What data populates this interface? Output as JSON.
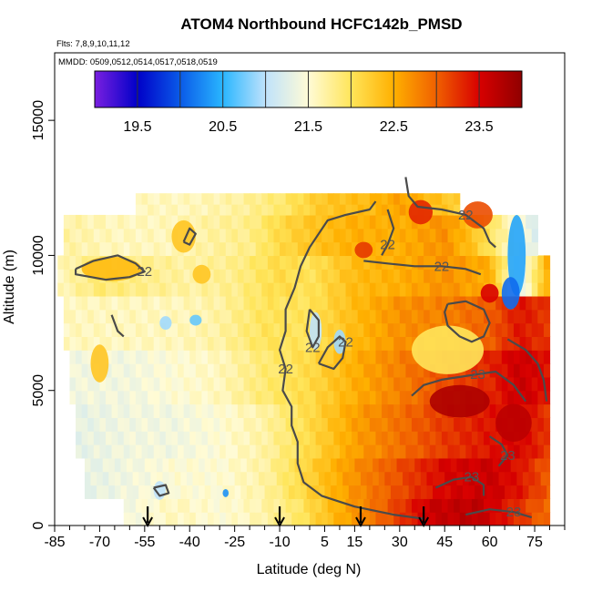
{
  "chart_data": {
    "type": "heatmap",
    "title": "ATOM4 Northbound HCFC142b_PMSD",
    "subtitle_flights": "Flts: 7,8,9,10,11,12",
    "subtitle_dates": "MMDD: 0509,0512,0514,0517,0518,0519",
    "xlabel": "Latitude (deg N)",
    "ylabel": "Altitude (m)",
    "xlim": [
      -85,
      85
    ],
    "ylim": [
      0,
      17500
    ],
    "x_ticks": [
      -85,
      -70,
      -55,
      -40,
      -25,
      -10,
      5,
      15,
      30,
      45,
      60,
      75
    ],
    "x_tick_labels": [
      "-85",
      "-70",
      "-55",
      "-40",
      "-25",
      "-10",
      "5",
      "15",
      "30",
      "45",
      "60",
      "75"
    ],
    "y_ticks": [
      0,
      5000,
      10000,
      15000
    ],
    "y_tick_labels": [
      "0",
      "5000",
      "10000",
      "15000"
    ],
    "colorbar": {
      "min": 19.0,
      "max": 24.0,
      "ticks": [
        19.5,
        20.5,
        21.5,
        22.5,
        23.5
      ],
      "tick_labels": [
        "19.5",
        "20.5",
        "21.5",
        "22.5",
        "23.5"
      ],
      "colors": [
        "#7a1fe0",
        "#0000c8",
        "#0a5ae8",
        "#29b6ff",
        "#bfe2fb",
        "#fffbd6",
        "#ffe55a",
        "#ffb000",
        "#f06000",
        "#d80000",
        "#900000"
      ]
    },
    "contour_labels": [
      "22",
      "22",
      "22",
      "22",
      "22",
      "22",
      "22",
      "23",
      "23",
      "23",
      "23"
    ],
    "profile_arrows_lat": [
      -54,
      -10,
      17,
      38
    ],
    "bands": [
      {
        "alt_min": 0,
        "alt_max": 1000,
        "lat_min": -62,
        "lat_max": 80,
        "values": [
          [
            -62,
            21.4
          ],
          [
            -45,
            21.6
          ],
          [
            -30,
            21.5
          ],
          [
            -20,
            21.6
          ],
          [
            -5,
            21.9
          ],
          [
            10,
            22.5
          ],
          [
            25,
            23.0
          ],
          [
            40,
            23.6
          ],
          [
            55,
            23.7
          ],
          [
            65,
            23.4
          ],
          [
            80,
            22.9
          ]
        ]
      },
      {
        "alt_min": 1000,
        "alt_max": 2500,
        "lat_min": -75,
        "lat_max": 80,
        "values": [
          [
            -75,
            21.3
          ],
          [
            -60,
            21.4
          ],
          [
            -45,
            21.5
          ],
          [
            -30,
            21.5
          ],
          [
            -15,
            21.7
          ],
          [
            0,
            22.2
          ],
          [
            15,
            22.7
          ],
          [
            30,
            23.1
          ],
          [
            45,
            23.5
          ],
          [
            60,
            23.6
          ],
          [
            70,
            23.4
          ],
          [
            80,
            23.0
          ]
        ]
      },
      {
        "alt_min": 2500,
        "alt_max": 4500,
        "lat_min": -78,
        "lat_max": 80,
        "values": [
          [
            -78,
            21.3
          ],
          [
            -60,
            21.4
          ],
          [
            -45,
            21.4
          ],
          [
            -30,
            21.5
          ],
          [
            -15,
            21.7
          ],
          [
            0,
            22.1
          ],
          [
            15,
            22.6
          ],
          [
            30,
            22.9
          ],
          [
            45,
            23.2
          ],
          [
            60,
            23.4
          ],
          [
            70,
            23.5
          ],
          [
            80,
            23.2
          ]
        ]
      },
      {
        "alt_min": 4500,
        "alt_max": 6500,
        "lat_min": -80,
        "lat_max": 80,
        "values": [
          [
            -80,
            21.4
          ],
          [
            -60,
            21.4
          ],
          [
            -45,
            21.5
          ],
          [
            -30,
            21.6
          ],
          [
            -15,
            21.9
          ],
          [
            0,
            22.1
          ],
          [
            15,
            22.5
          ],
          [
            30,
            22.8
          ],
          [
            45,
            23.1
          ],
          [
            60,
            23.3
          ],
          [
            70,
            23.6
          ],
          [
            80,
            23.4
          ]
        ]
      },
      {
        "alt_min": 6500,
        "alt_max": 8500,
        "lat_min": -82,
        "lat_max": 80,
        "values": [
          [
            -82,
            21.6
          ],
          [
            -60,
            21.6
          ],
          [
            -45,
            21.6
          ],
          [
            -30,
            21.7
          ],
          [
            -15,
            22.0
          ],
          [
            0,
            22.0
          ],
          [
            15,
            22.4
          ],
          [
            30,
            22.7
          ],
          [
            45,
            22.8
          ],
          [
            60,
            23.0
          ],
          [
            70,
            23.4
          ],
          [
            80,
            23.2
          ]
        ]
      },
      {
        "alt_min": 8500,
        "alt_max": 10000,
        "lat_min": -84,
        "lat_max": 80,
        "values": [
          [
            -84,
            21.6
          ],
          [
            -70,
            21.9
          ],
          [
            -55,
            21.8
          ],
          [
            -40,
            21.7
          ],
          [
            -25,
            21.8
          ],
          [
            -10,
            22.1
          ],
          [
            0,
            22.0
          ],
          [
            15,
            22.4
          ],
          [
            30,
            22.5
          ],
          [
            45,
            22.7
          ],
          [
            60,
            22.5
          ],
          [
            70,
            21.2
          ],
          [
            80,
            22.6
          ]
        ]
      },
      {
        "alt_min": 10000,
        "alt_max": 11500,
        "lat_min": -82,
        "lat_max": 76,
        "values": [
          [
            -82,
            21.7
          ],
          [
            -65,
            21.6
          ],
          [
            -50,
            21.6
          ],
          [
            -35,
            21.7
          ],
          [
            -20,
            21.8
          ],
          [
            -10,
            22.1
          ],
          [
            0,
            22.3
          ],
          [
            15,
            22.5
          ],
          [
            30,
            22.5
          ],
          [
            45,
            22.7
          ],
          [
            55,
            22.3
          ],
          [
            65,
            21.7
          ],
          [
            76,
            21.2
          ]
        ]
      },
      {
        "alt_min": 11500,
        "alt_max": 12300,
        "lat_min": -58,
        "lat_max": 50,
        "values": [
          [
            -58,
            21.6
          ],
          [
            -40,
            21.6
          ],
          [
            -25,
            21.7
          ],
          [
            -10,
            21.9
          ],
          [
            5,
            22.3
          ],
          [
            20,
            22.4
          ],
          [
            30,
            22.6
          ],
          [
            40,
            22.4
          ],
          [
            50,
            22.2
          ]
        ]
      }
    ],
    "blobs": [
      {
        "lat": -70,
        "alt": 6000,
        "rlat": 3,
        "ralt": 700,
        "value": 22.3
      },
      {
        "lat": -66,
        "alt": 9500,
        "rlat": 10,
        "ralt": 450,
        "value": 22.4
      },
      {
        "lat": -42,
        "alt": 10700,
        "rlat": 4,
        "ralt": 600,
        "value": 22.3
      },
      {
        "lat": -36,
        "alt": 9300,
        "rlat": 3,
        "ralt": 350,
        "value": 22.3
      },
      {
        "lat": -48,
        "alt": 7500,
        "rlat": 2,
        "ralt": 250,
        "value": 20.9
      },
      {
        "lat": -38,
        "alt": 7600,
        "rlat": 2,
        "ralt": 200,
        "value": 20.7
      },
      {
        "lat": -50,
        "alt": 1300,
        "rlat": 2,
        "ralt": 350,
        "value": 21.0
      },
      {
        "lat": -28,
        "alt": 1200,
        "rlat": 1,
        "ralt": 150,
        "value": 20.3
      },
      {
        "lat": 46,
        "alt": 6500,
        "rlat": 12,
        "ralt": 900,
        "value": 22.0
      },
      {
        "lat": 2,
        "alt": 7200,
        "rlat": 2,
        "ralt": 700,
        "value": 21.0
      },
      {
        "lat": 10,
        "alt": 6800,
        "rlat": 2,
        "ralt": 450,
        "value": 20.9
      },
      {
        "lat": 69,
        "alt": 10000,
        "rlat": 3,
        "ralt": 1500,
        "value": 20.4
      },
      {
        "lat": 67,
        "alt": 8600,
        "rlat": 3,
        "ralt": 600,
        "value": 20.1
      },
      {
        "lat": 56,
        "alt": 11500,
        "rlat": 5,
        "ralt": 500,
        "value": 23.1
      },
      {
        "lat": 37,
        "alt": 11600,
        "rlat": 4,
        "ralt": 450,
        "value": 23.3
      },
      {
        "lat": 18,
        "alt": 10200,
        "rlat": 3,
        "ralt": 300,
        "value": 23.2
      },
      {
        "lat": 60,
        "alt": 8600,
        "rlat": 3,
        "ralt": 350,
        "value": 23.5
      },
      {
        "lat": 68,
        "alt": 3800,
        "rlat": 6,
        "ralt": 700,
        "value": 23.7
      },
      {
        "lat": 50,
        "alt": 4600,
        "rlat": 10,
        "ralt": 600,
        "value": 23.8
      }
    ],
    "contours": [
      {
        "label": "22",
        "points": [
          [
            22,
            12000
          ],
          [
            20,
            11700
          ],
          [
            12,
            11500
          ],
          [
            6,
            11300
          ],
          [
            3,
            10800
          ],
          [
            0,
            10300
          ],
          [
            -3,
            9600
          ],
          [
            -5,
            8800
          ],
          [
            -8,
            8000
          ],
          [
            -8,
            7200
          ],
          [
            -10,
            6500
          ],
          [
            -8,
            5800
          ],
          [
            -9,
            5000
          ],
          [
            -6,
            4400
          ],
          [
            -6,
            3700
          ],
          [
            -4,
            3100
          ],
          [
            -4,
            2300
          ],
          [
            -2,
            1600
          ],
          [
            4,
            1100
          ],
          [
            15,
            700
          ],
          [
            28,
            400
          ],
          [
            38,
            250
          ]
        ]
      },
      {
        "label": "22",
        "points": [
          [
            26,
            11700
          ],
          [
            28,
            11000
          ],
          [
            26,
            10400
          ],
          [
            24,
            10000
          ]
        ]
      },
      {
        "label": "22",
        "points": [
          [
            32,
            12900
          ],
          [
            33,
            12200
          ],
          [
            36,
            11800
          ],
          [
            44,
            11700
          ],
          [
            52,
            11500
          ],
          [
            58,
            11000
          ],
          [
            60,
            10500
          ],
          [
            62,
            10300
          ]
        ]
      },
      {
        "label": "22",
        "points": [
          [
            18,
            9800
          ],
          [
            26,
            9700
          ],
          [
            35,
            9600
          ],
          [
            44,
            9600
          ],
          [
            52,
            9500
          ],
          [
            57,
            9300
          ]
        ]
      },
      {
        "label": "22",
        "points": [
          [
            -78,
            9500
          ],
          [
            -72,
            9800
          ],
          [
            -64,
            10000
          ],
          [
            -58,
            9700
          ],
          [
            -55,
            9400
          ],
          [
            -60,
            9200
          ],
          [
            -68,
            9100
          ],
          [
            -78,
            9300
          ],
          [
            -78,
            9500
          ]
        ]
      },
      {
        "label": "22",
        "points": [
          [
            3,
            6000
          ],
          [
            6,
            6600
          ],
          [
            10,
            7000
          ],
          [
            12,
            6800
          ],
          [
            11,
            6200
          ],
          [
            8,
            5800
          ],
          [
            3,
            6000
          ]
        ]
      },
      {
        "label": "22",
        "points": [
          [
            0,
            8000
          ],
          [
            3,
            7600
          ],
          [
            3,
            7000
          ],
          [
            1,
            6600
          ],
          [
            -1,
            7200
          ],
          [
            0,
            8000
          ]
        ]
      },
      {
        "label": "23",
        "points": [
          [
            34,
            4800
          ],
          [
            38,
            5200
          ],
          [
            44,
            5400
          ],
          [
            50,
            5500
          ],
          [
            56,
            5600
          ],
          [
            62,
            5700
          ],
          [
            68,
            5200
          ],
          [
            72,
            4600
          ]
        ]
      },
      {
        "label": "23",
        "points": [
          [
            42,
            1400
          ],
          [
            48,
            1700
          ],
          [
            54,
            1800
          ],
          [
            58,
            1500
          ],
          [
            58,
            1100
          ]
        ]
      },
      {
        "label": "23",
        "points": [
          [
            60,
            3300
          ],
          [
            64,
            3000
          ],
          [
            66,
            2600
          ],
          [
            63,
            2200
          ]
        ]
      },
      {
        "label": "23",
        "points": [
          [
            52,
            400
          ],
          [
            60,
            600
          ],
          [
            68,
            500
          ],
          [
            74,
            300
          ]
        ]
      },
      {
        "label": "",
        "points": [
          [
            46,
            8200
          ],
          [
            52,
            8300
          ],
          [
            58,
            8000
          ],
          [
            60,
            7500
          ],
          [
            58,
            7000
          ],
          [
            54,
            6800
          ],
          [
            50,
            7000
          ],
          [
            46,
            7400
          ],
          [
            45,
            7900
          ],
          [
            46,
            8200
          ]
        ]
      },
      {
        "label": "",
        "points": [
          [
            66,
            6900
          ],
          [
            72,
            6500
          ],
          [
            76,
            6000
          ],
          [
            78,
            5400
          ],
          [
            79,
            4600
          ]
        ]
      },
      {
        "label": "",
        "points": [
          [
            -66,
            7800
          ],
          [
            -64,
            7200
          ],
          [
            -62,
            7000
          ]
        ]
      },
      {
        "label": "",
        "points": [
          [
            -42,
            10500
          ],
          [
            -40,
            11000
          ],
          [
            -38,
            10800
          ],
          [
            -40,
            10400
          ],
          [
            -42,
            10500
          ]
        ]
      },
      {
        "label": "",
        "points": [
          [
            -52,
            1400
          ],
          [
            -48,
            1500
          ],
          [
            -47,
            1200
          ],
          [
            -50,
            1100
          ],
          [
            -52,
            1400
          ]
        ]
      }
    ]
  }
}
